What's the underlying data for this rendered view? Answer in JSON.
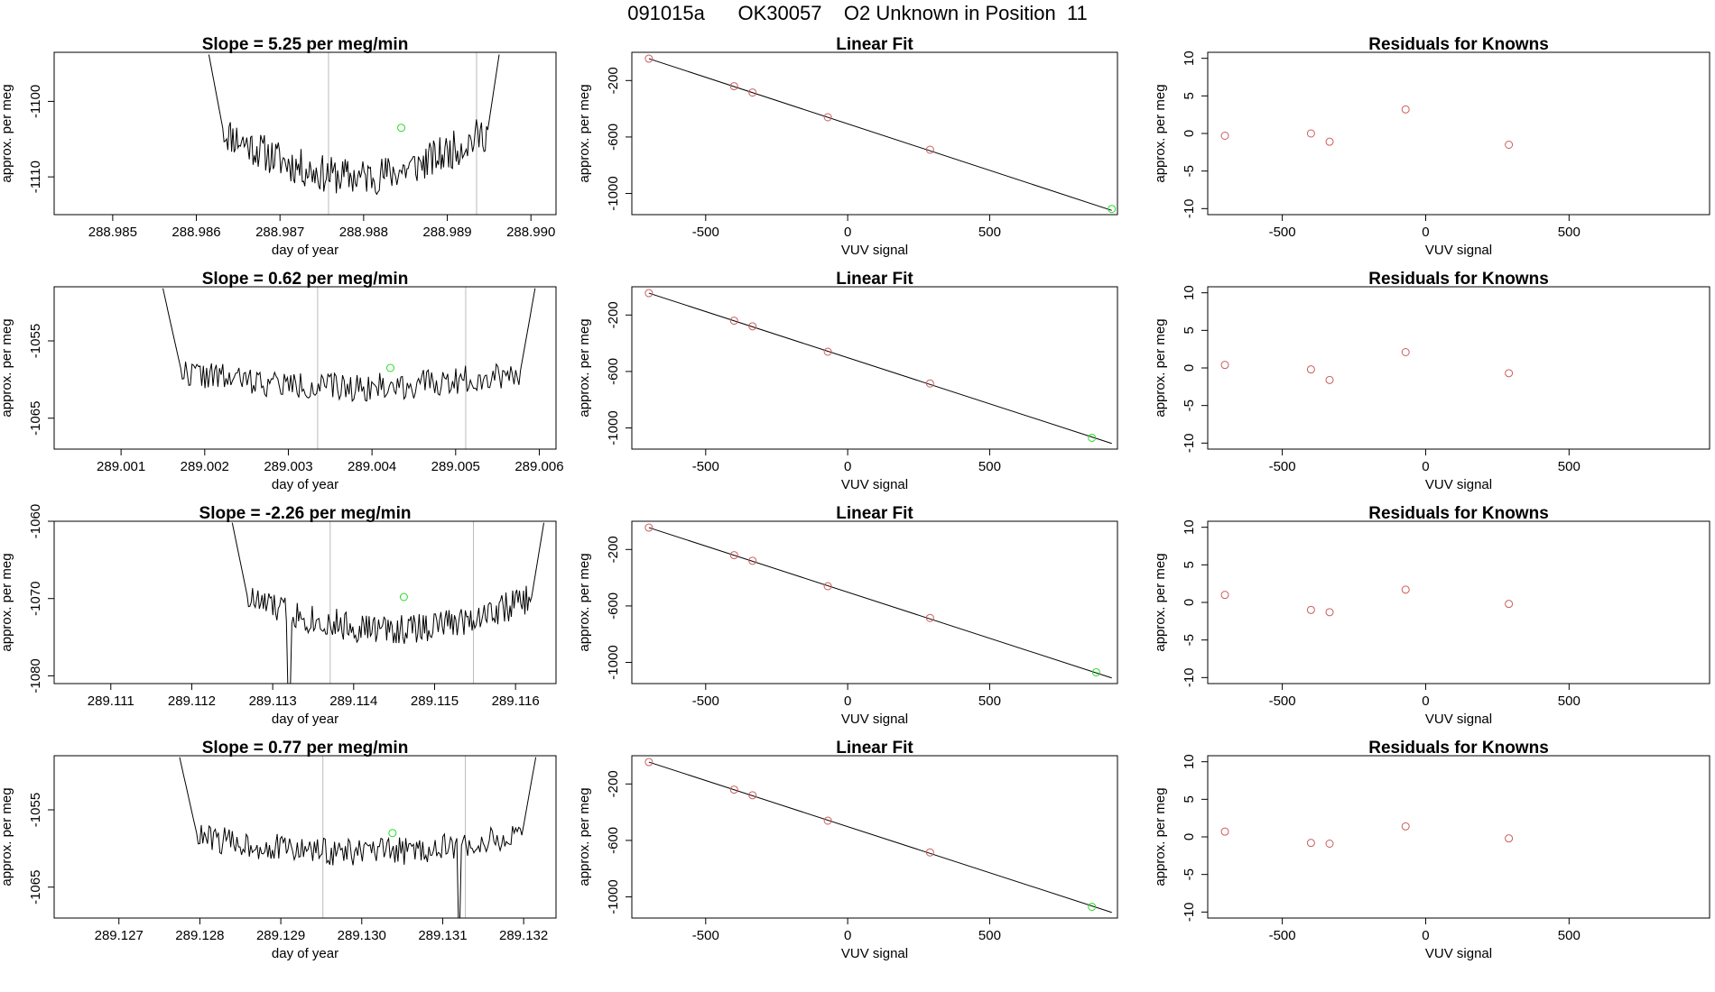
{
  "page_title": "091015a      OK30057    O2 Unknown in Position  11",
  "colors": {
    "trace": "#000000",
    "known": "#cd5c5c",
    "unknown": "#22dd22",
    "vline": "#bbbbbb",
    "axis": "#000000"
  },
  "chart_data": [
    {
      "type": "line",
      "title": "Slope =  5.25  per meg/min",
      "xlabel": "day of year",
      "ylabel": "approx. per meg",
      "xlim": [
        288.9843,
        288.9903
      ],
      "ylim": [
        -1115,
        -1093.5
      ],
      "xticks": [
        "288.985",
        "288.986",
        "288.987",
        "288.988",
        "288.989",
        "288.990"
      ],
      "yticks": [
        "-1100",
        "-1110"
      ],
      "vlines": [
        288.98758,
        288.98935
      ],
      "trace": {
        "x_start": 288.98615,
        "x_end": 288.98962,
        "y_start": -1093.8,
        "y_end": -1093.8,
        "center": -1104,
        "depth": 6,
        "noise": 2.5,
        "seed": 11
      },
      "marker": {
        "x": 288.98845,
        "y": -1103.5
      }
    },
    {
      "type": "scatter",
      "title": "Linear Fit",
      "xlabel": "VUV signal",
      "ylabel": "approx. per meg",
      "xlim": [
        -760,
        950
      ],
      "ylim": [
        -1150,
        0
      ],
      "xticks": [
        "-500",
        "0",
        "500"
      ],
      "yticks": [
        "-200",
        "-600",
        "-1000"
      ],
      "known_points": [
        [
          -700,
          -45
        ],
        [
          -400,
          -240
        ],
        [
          -335,
          -285
        ],
        [
          -70,
          -460
        ],
        [
          290,
          -690
        ]
      ],
      "unknown_point": [
        930,
        -1110
      ],
      "fit_line": [
        [
          -700,
          -45
        ],
        [
          930,
          -1120
        ]
      ]
    },
    {
      "type": "scatter",
      "title": "Residuals for Knowns",
      "xlabel": "VUV signal",
      "ylabel": "approx. per meg",
      "xlim": [
        -760,
        990
      ],
      "ylim": [
        -10.8,
        10.8
      ],
      "xticks": [
        "-500",
        "0",
        "500"
      ],
      "yticks": [
        "10",
        "5",
        "0",
        "-5",
        "-10"
      ],
      "points": [
        [
          -700,
          -0.3
        ],
        [
          -400,
          0
        ],
        [
          -335,
          -1.1
        ],
        [
          -70,
          3.2
        ],
        [
          290,
          -1.5
        ]
      ]
    },
    {
      "type": "line",
      "title": "Slope =  0.62  per meg/min",
      "xlabel": "day of year",
      "ylabel": "approx. per meg",
      "xlim": [
        289.0002,
        289.0062
      ],
      "ylim": [
        -1069,
        -1048
      ],
      "xticks": [
        "289.001",
        "289.002",
        "289.003",
        "289.004",
        "289.005",
        "289.006"
      ],
      "yticks": [
        "-1055",
        "-1065"
      ],
      "vlines": [
        289.00335,
        289.00512
      ],
      "trace": {
        "x_start": 289.0015,
        "x_end": 289.00595,
        "y_start": -1048.2,
        "y_end": -1048.2,
        "center": -1059,
        "depth": 2,
        "noise": 1.8,
        "seed": 22
      },
      "marker": {
        "x": 289.00422,
        "y": -1058.5
      }
    },
    {
      "type": "scatter",
      "title": "Linear Fit",
      "xlabel": "VUV signal",
      "ylabel": "approx. per meg",
      "xlim": [
        -760,
        950
      ],
      "ylim": [
        -1150,
        0
      ],
      "xticks": [
        "-500",
        "0",
        "500"
      ],
      "yticks": [
        "-200",
        "-600",
        "-1000"
      ],
      "known_points": [
        [
          -700,
          -45
        ],
        [
          -400,
          -240
        ],
        [
          -335,
          -280
        ],
        [
          -70,
          -460
        ],
        [
          290,
          -685
        ]
      ],
      "unknown_point": [
        860,
        -1070
      ],
      "fit_line": [
        [
          -700,
          -45
        ],
        [
          930,
          -1110
        ]
      ]
    },
    {
      "type": "scatter",
      "title": "Residuals for Knowns",
      "xlabel": "VUV signal",
      "ylabel": "approx. per meg",
      "xlim": [
        -760,
        990
      ],
      "ylim": [
        -10.8,
        10.8
      ],
      "xticks": [
        "-500",
        "0",
        "500"
      ],
      "yticks": [
        "10",
        "5",
        "0",
        "-5",
        "-10"
      ],
      "points": [
        [
          -700,
          0.4
        ],
        [
          -400,
          -0.2
        ],
        [
          -335,
          -1.6
        ],
        [
          -70,
          2.1
        ],
        [
          290,
          -0.7
        ]
      ]
    },
    {
      "type": "line",
      "title": "Slope =  -2.26  per meg/min",
      "xlabel": "day of year",
      "ylabel": "approx. per meg",
      "xlim": [
        289.1103,
        289.1165
      ],
      "ylim": [
        -1081,
        -1060
      ],
      "xticks": [
        "289.111",
        "289.112",
        "289.113",
        "289.114",
        "289.115",
        "289.116"
      ],
      "yticks": [
        "-1060",
        "-1070",
        "-1080"
      ],
      "vlines": [
        289.11371,
        289.11548
      ],
      "trace": {
        "x_start": 289.1125,
        "x_end": 289.11635,
        "y_start": -1060.2,
        "y_end": -1060.2,
        "center": -1070,
        "depth": 4,
        "noise": 2,
        "seed": 33,
        "spike": {
          "x": 289.1132,
          "y": -1081
        }
      },
      "marker": {
        "x": 289.11462,
        "y": -1069.8
      }
    },
    {
      "type": "scatter",
      "title": "Linear Fit",
      "xlabel": "VUV signal",
      "ylabel": "approx. per meg",
      "xlim": [
        -760,
        950
      ],
      "ylim": [
        -1150,
        0
      ],
      "xticks": [
        "-500",
        "0",
        "500"
      ],
      "yticks": [
        "-200",
        "-600",
        "-1000"
      ],
      "known_points": [
        [
          -700,
          -45
        ],
        [
          -400,
          -240
        ],
        [
          -335,
          -280
        ],
        [
          -70,
          -460
        ],
        [
          290,
          -685
        ]
      ],
      "unknown_point": [
        875,
        -1070
      ],
      "fit_line": [
        [
          -700,
          -45
        ],
        [
          930,
          -1110
        ]
      ]
    },
    {
      "type": "scatter",
      "title": "Residuals for Knowns",
      "xlabel": "VUV signal",
      "ylabel": "approx. per meg",
      "xlim": [
        -760,
        990
      ],
      "ylim": [
        -10.8,
        10.8
      ],
      "xticks": [
        "-500",
        "0",
        "500"
      ],
      "yticks": [
        "10",
        "5",
        "0",
        "-5",
        "-10"
      ],
      "points": [
        [
          -700,
          1
        ],
        [
          -400,
          -1
        ],
        [
          -335,
          -1.3
        ],
        [
          -70,
          1.7
        ],
        [
          290,
          -0.2
        ]
      ]
    },
    {
      "type": "line",
      "title": "Slope =  0.77  per meg/min",
      "xlabel": "day of year",
      "ylabel": "approx. per meg",
      "xlim": [
        289.1262,
        289.1324
      ],
      "ylim": [
        -1069,
        -1048
      ],
      "xticks": [
        "289.127",
        "289.128",
        "289.129",
        "289.130",
        "289.131",
        "289.132"
      ],
      "yticks": [
        "-1055",
        "-1065"
      ],
      "vlines": [
        289.12952,
        289.13128
      ],
      "trace": {
        "x_start": 289.12775,
        "x_end": 289.13215,
        "y_start": -1048.2,
        "y_end": -1048.2,
        "center": -1058.5,
        "depth": 2,
        "noise": 1.8,
        "seed": 44,
        "spike": {
          "x": 289.1312,
          "y": -1069
        }
      },
      "marker": {
        "x": 289.13038,
        "y": -1058
      }
    },
    {
      "type": "scatter",
      "title": "Linear Fit",
      "xlabel": "VUV signal",
      "ylabel": "approx. per meg",
      "xlim": [
        -760,
        950
      ],
      "ylim": [
        -1150,
        0
      ],
      "xticks": [
        "-500",
        "0",
        "500"
      ],
      "yticks": [
        "-200",
        "-600",
        "-1000"
      ],
      "known_points": [
        [
          -700,
          -45
        ],
        [
          -400,
          -240
        ],
        [
          -335,
          -280
        ],
        [
          -70,
          -460
        ],
        [
          290,
          -685
        ]
      ],
      "unknown_point": [
        860,
        -1070
      ],
      "fit_line": [
        [
          -700,
          -45
        ],
        [
          930,
          -1110
        ]
      ]
    },
    {
      "type": "scatter",
      "title": "Residuals for Knowns",
      "xlabel": "VUV signal",
      "ylabel": "approx. per meg",
      "xlim": [
        -760,
        990
      ],
      "ylim": [
        -10.8,
        10.8
      ],
      "xticks": [
        "-500",
        "0",
        "500"
      ],
      "yticks": [
        "10",
        "5",
        "0",
        "-5",
        "-10"
      ],
      "points": [
        [
          -700,
          0.7
        ],
        [
          -400,
          -0.8
        ],
        [
          -335,
          -0.9
        ],
        [
          -70,
          1.4
        ],
        [
          290,
          -0.2
        ]
      ]
    }
  ]
}
